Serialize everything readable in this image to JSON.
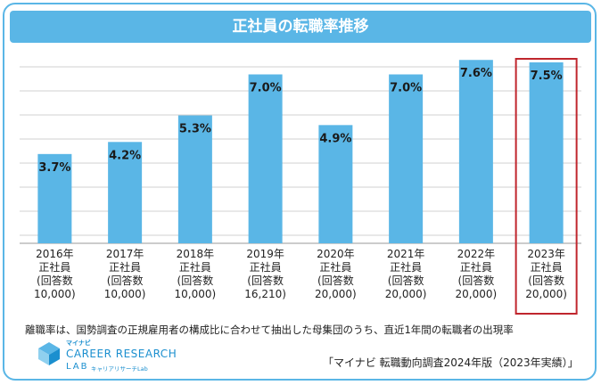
{
  "chart_data": {
    "type": "bar",
    "title": "正社員の転職率推移",
    "categories": [
      [
        "2016年",
        "正社員",
        "(回答数",
        "10,000)"
      ],
      [
        "2017年",
        "正社員",
        "(回答数",
        "10,000)"
      ],
      [
        "2018年",
        "正社員",
        "(回答数",
        "10,000)"
      ],
      [
        "2019年",
        "正社員",
        "(回答数",
        "16,210)"
      ],
      [
        "2020年",
        "正社員",
        "(回答数",
        "20,000)"
      ],
      [
        "2021年",
        "正社員",
        "(回答数",
        "20,000)"
      ],
      [
        "2022年",
        "正社員",
        "(回答数",
        "20,000)"
      ],
      [
        "2023年",
        "正社員",
        "(回答数",
        "20,000)"
      ]
    ],
    "values": [
      3.7,
      4.2,
      5.3,
      7.0,
      4.9,
      7.0,
      7.6,
      7.5
    ],
    "data_labels": [
      "3.7%",
      "4.2%",
      "5.3%",
      "7.0%",
      "4.9%",
      "7.0%",
      "7.6%",
      "7.5%"
    ],
    "ylim": [
      0,
      8
    ],
    "highlight_index": 7,
    "grid": true,
    "colors": {
      "bar": "#5ab6e6",
      "highlight_border": "#c0262d",
      "grid": "#d0d0d0"
    }
  },
  "note": "離職率は、国勢調査の正規雇用者の構成比に合わせて抽出した母集団のうち、直近1年間の転職者の出現率",
  "source": "「マイナビ 転職動向調査2024年版（2023年実績）」",
  "logo": {
    "small": "マイナビ",
    "main": "CAREER RESEARCH",
    "lab": "LAB",
    "sub": "キャリアリサーチLab"
  }
}
